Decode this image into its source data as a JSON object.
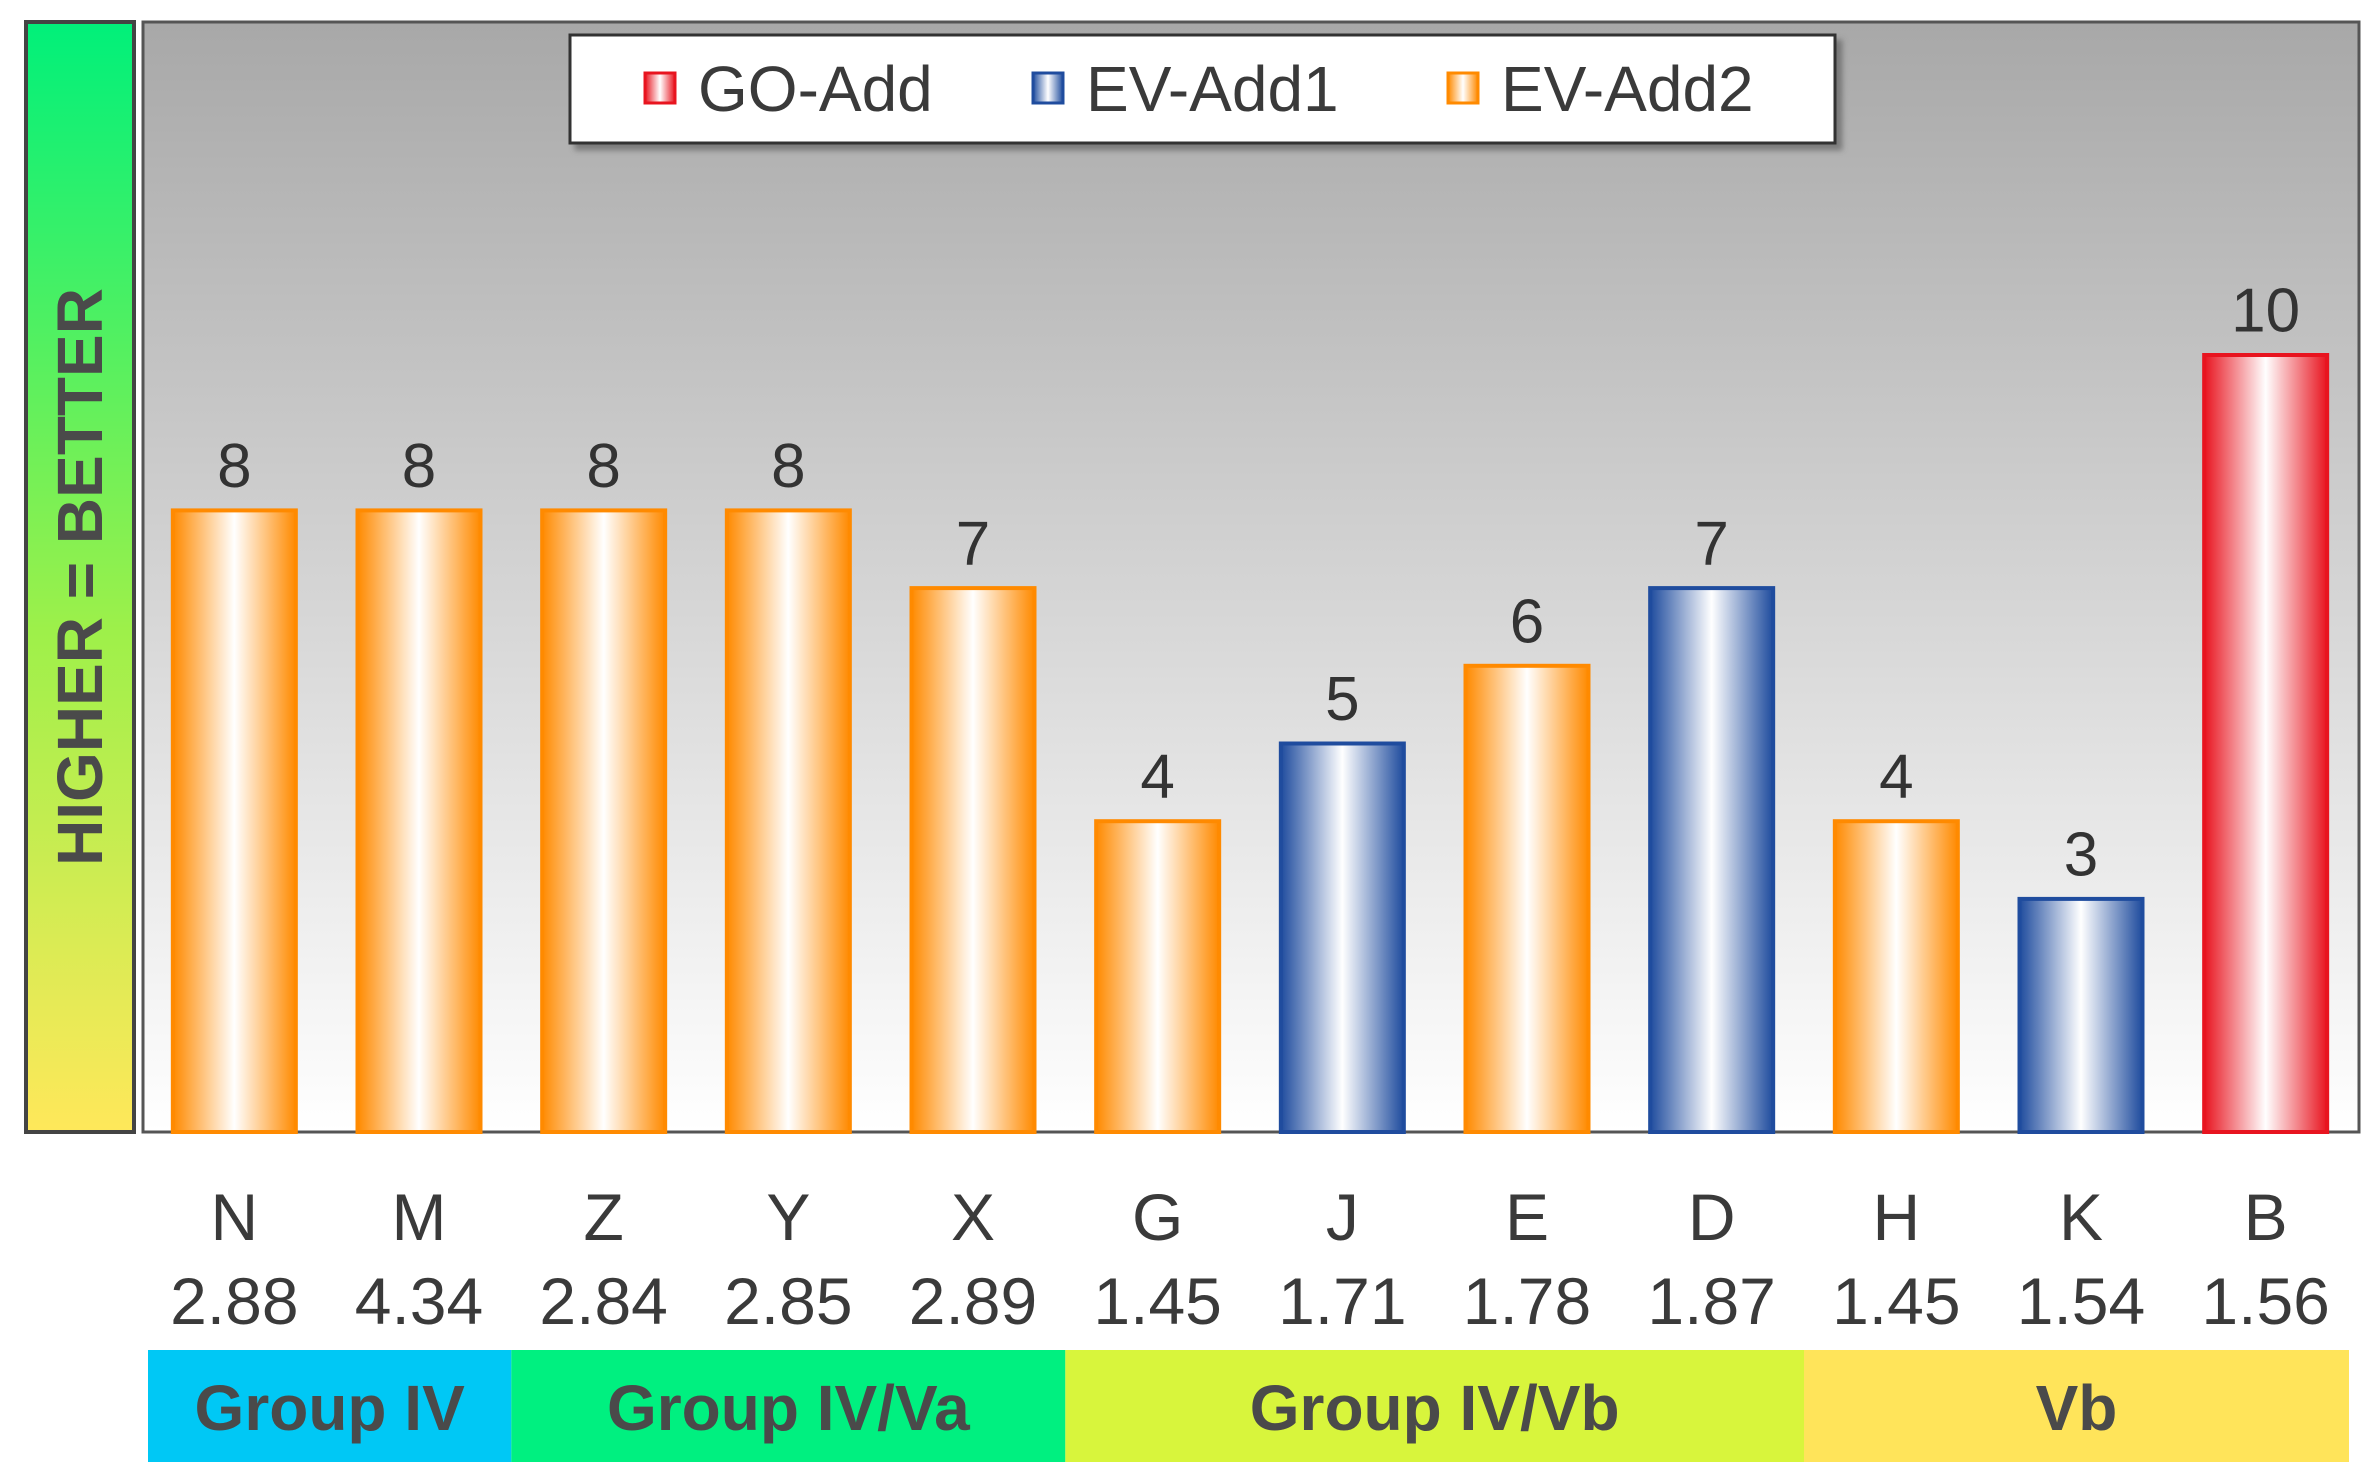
{
  "side_label": "HIGHER = BETTER",
  "colors": {
    "GO-Add": "#e8141f",
    "EV-Add1": "#1f4c9e",
    "EV-Add2": "#ff8a00"
  },
  "chart_data": {
    "type": "bar",
    "title": "",
    "xlabel": "",
    "ylabel": "HIGHER = BETTER",
    "ylim": [
      0,
      12
    ],
    "grid": false,
    "legend": {
      "position": "top-center",
      "entries": [
        "GO-Add",
        "EV-Add1",
        "EV-Add2"
      ]
    },
    "categories": [
      "N",
      "M",
      "Z",
      "Y",
      "X",
      "G",
      "J",
      "E",
      "D",
      "H",
      "K",
      "B"
    ],
    "sublabels": [
      "2.88",
      "4.34",
      "2.84",
      "2.85",
      "2.89",
      "1.45",
      "1.71",
      "1.78",
      "1.87",
      "1.45",
      "1.54",
      "1.56"
    ],
    "values": [
      8,
      8,
      8,
      8,
      7,
      4,
      5,
      6,
      7,
      4,
      3,
      10
    ],
    "series_of_bar": [
      "EV-Add2",
      "EV-Add2",
      "EV-Add2",
      "EV-Add2",
      "EV-Add2",
      "EV-Add2",
      "EV-Add1",
      "EV-Add2",
      "EV-Add1",
      "EV-Add2",
      "EV-Add1",
      "GO-Add"
    ],
    "groups": [
      {
        "label": "Group IV",
        "start": 0,
        "end": 1,
        "color": "#00c8f5"
      },
      {
        "label": "Group IV/Va",
        "start": 2,
        "end": 4,
        "color": "#00f080"
      },
      {
        "label": "Group IV/Vb",
        "start": 5,
        "end": 8,
        "color": "#d8f53c"
      },
      {
        "label": "Vb",
        "start": 9,
        "end": 11,
        "color": "#ffe45a"
      }
    ]
  }
}
